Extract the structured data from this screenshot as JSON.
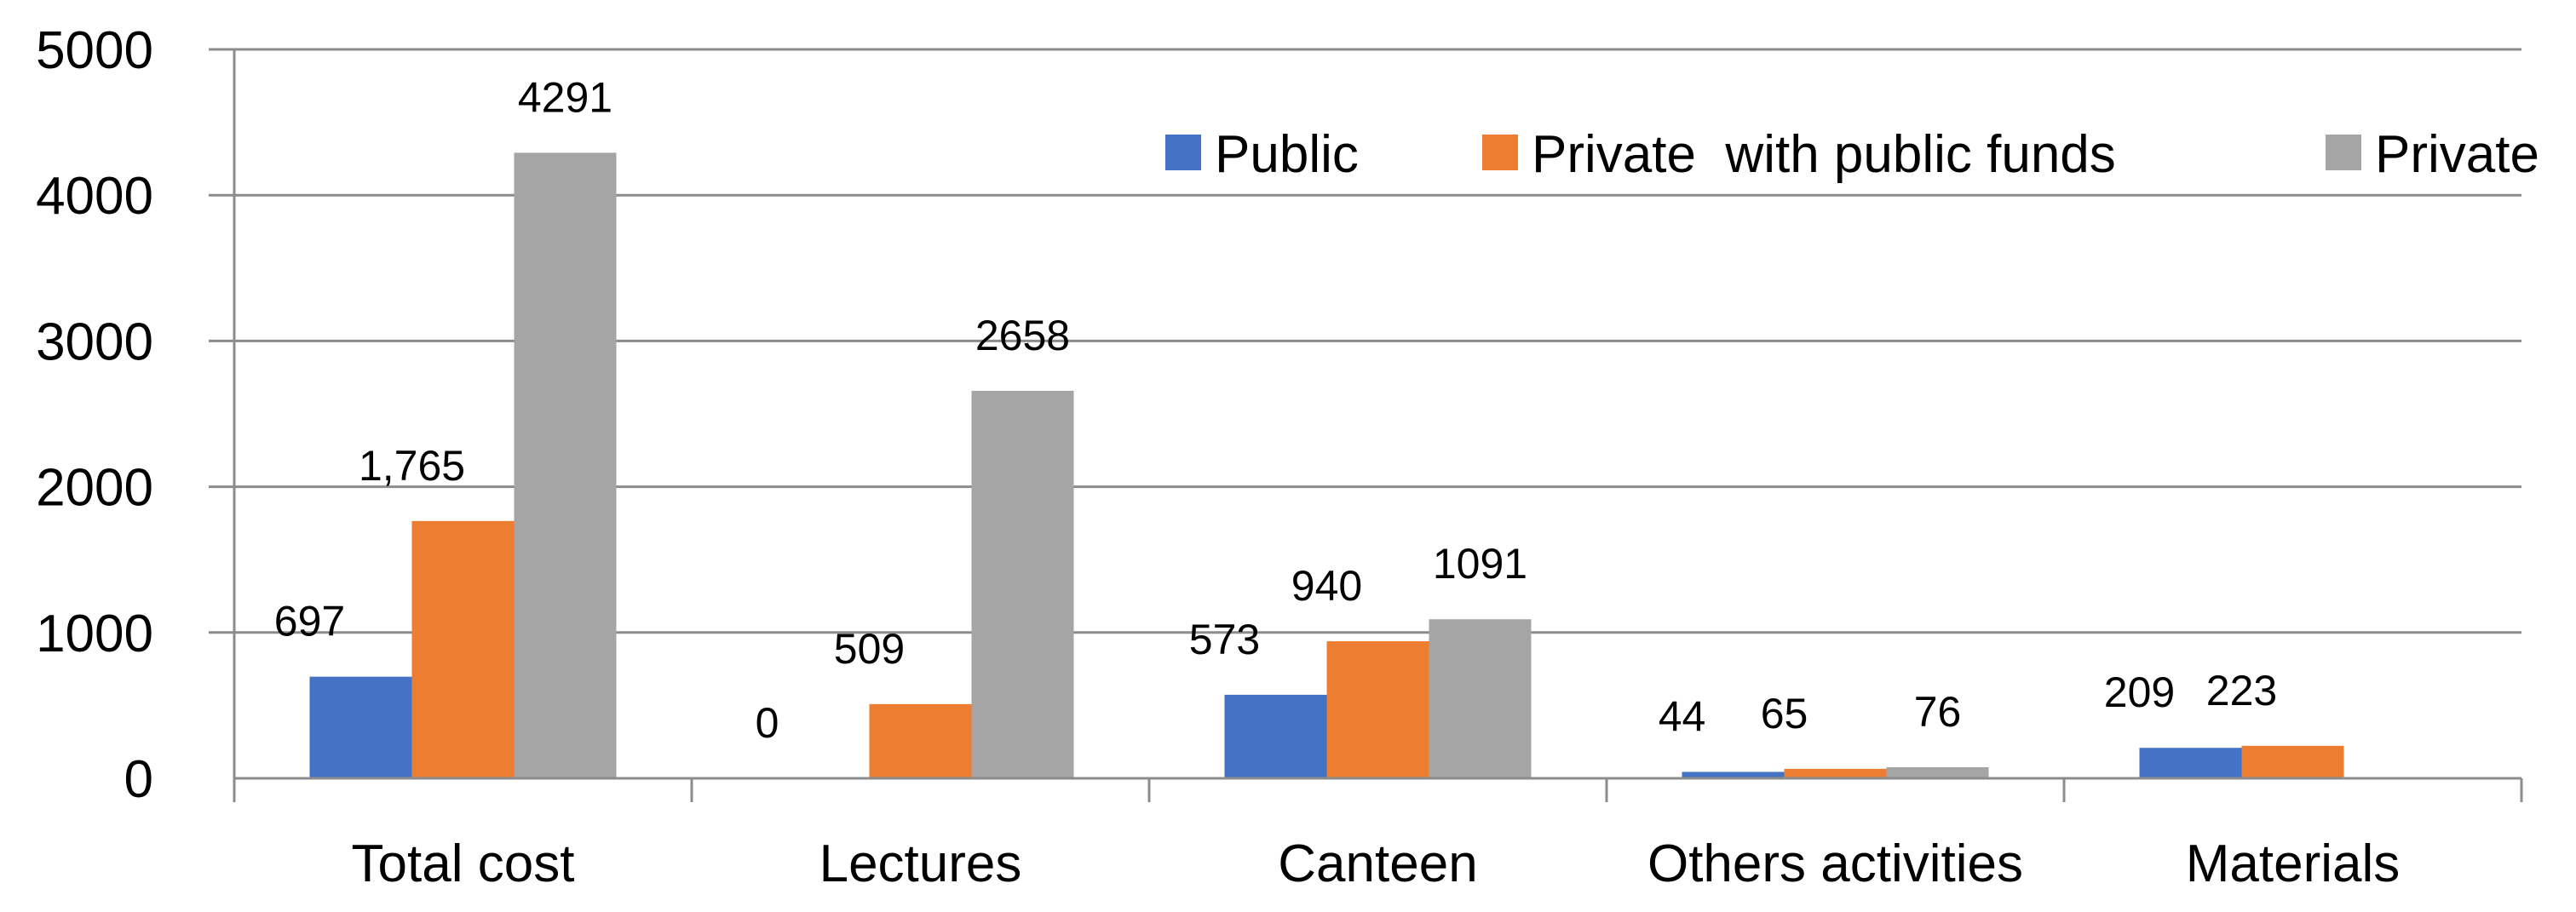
{
  "chart_data": {
    "type": "bar",
    "title": "",
    "xlabel": "",
    "ylabel": "",
    "ylim": [
      0,
      5000
    ],
    "yticks": [
      0,
      1000,
      2000,
      3000,
      4000,
      5000
    ],
    "ytick_labels": [
      "0",
      "1000",
      "2000",
      "3000",
      "4000",
      "5000"
    ],
    "grid": true,
    "legend_position": "top-right",
    "categories": [
      "Total cost",
      "Lectures",
      "Canteen",
      "Others activities",
      "Materials"
    ],
    "series": [
      {
        "name": "Public",
        "color": "#4472C4",
        "values": [
          697,
          0,
          573,
          44,
          209
        ],
        "labels": [
          "697",
          "0",
          "573",
          "44",
          "209"
        ]
      },
      {
        "name": "Private  with public funds",
        "color": "#ED7D31",
        "values": [
          1765,
          509,
          940,
          65,
          223
        ],
        "labels": [
          "1,765",
          "509",
          "940",
          "65",
          "223"
        ]
      },
      {
        "name": "Private",
        "color": "#A5A5A5",
        "values": [
          4291,
          2658,
          1091,
          76,
          null
        ],
        "labels": [
          "4291",
          "2658",
          "1091",
          "76",
          null
        ]
      }
    ]
  }
}
